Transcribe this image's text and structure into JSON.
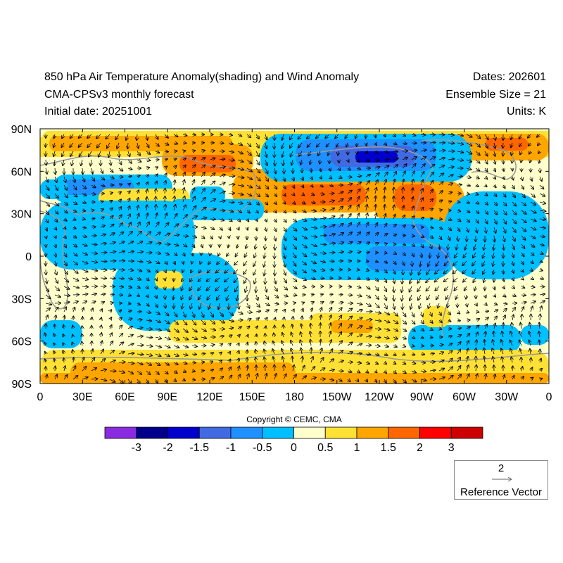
{
  "header": {
    "title": "850 hPa Air Temperature Anomaly(shading) and Wind Anomaly",
    "model": "CMA-CPSv3 monthly forecast",
    "initial_date": "Initial date: 20251001",
    "dates": "Dates: 202601",
    "ensemble": "Ensemble Size = 21",
    "units": "Units: K"
  },
  "axes": {
    "lat_labels": [
      "90N",
      "60N",
      "30N",
      "0",
      "30S",
      "60S",
      "90S"
    ],
    "lon_labels": [
      "0",
      "30E",
      "60E",
      "90E",
      "120E",
      "150E",
      "180",
      "150W",
      "120W",
      "90W",
      "60W",
      "30W",
      "0"
    ]
  },
  "copyright": "Copyright © CEMC, CMA",
  "colorbar": {
    "colors": [
      "#8a2be2",
      "#00008b",
      "#0000cd",
      "#4169e1",
      "#1e90ff",
      "#00bfff",
      "#ffffcc",
      "#ffe135",
      "#ffa500",
      "#ff6600",
      "#ff0000",
      "#cc0000"
    ],
    "labels": [
      "-3",
      "-2",
      "-1.5",
      "-1",
      "-0.5",
      "0",
      "0.5",
      "1",
      "1.5",
      "2",
      "3"
    ]
  },
  "reference_vector": {
    "magnitude": "2",
    "label": "Reference Vector"
  }
}
